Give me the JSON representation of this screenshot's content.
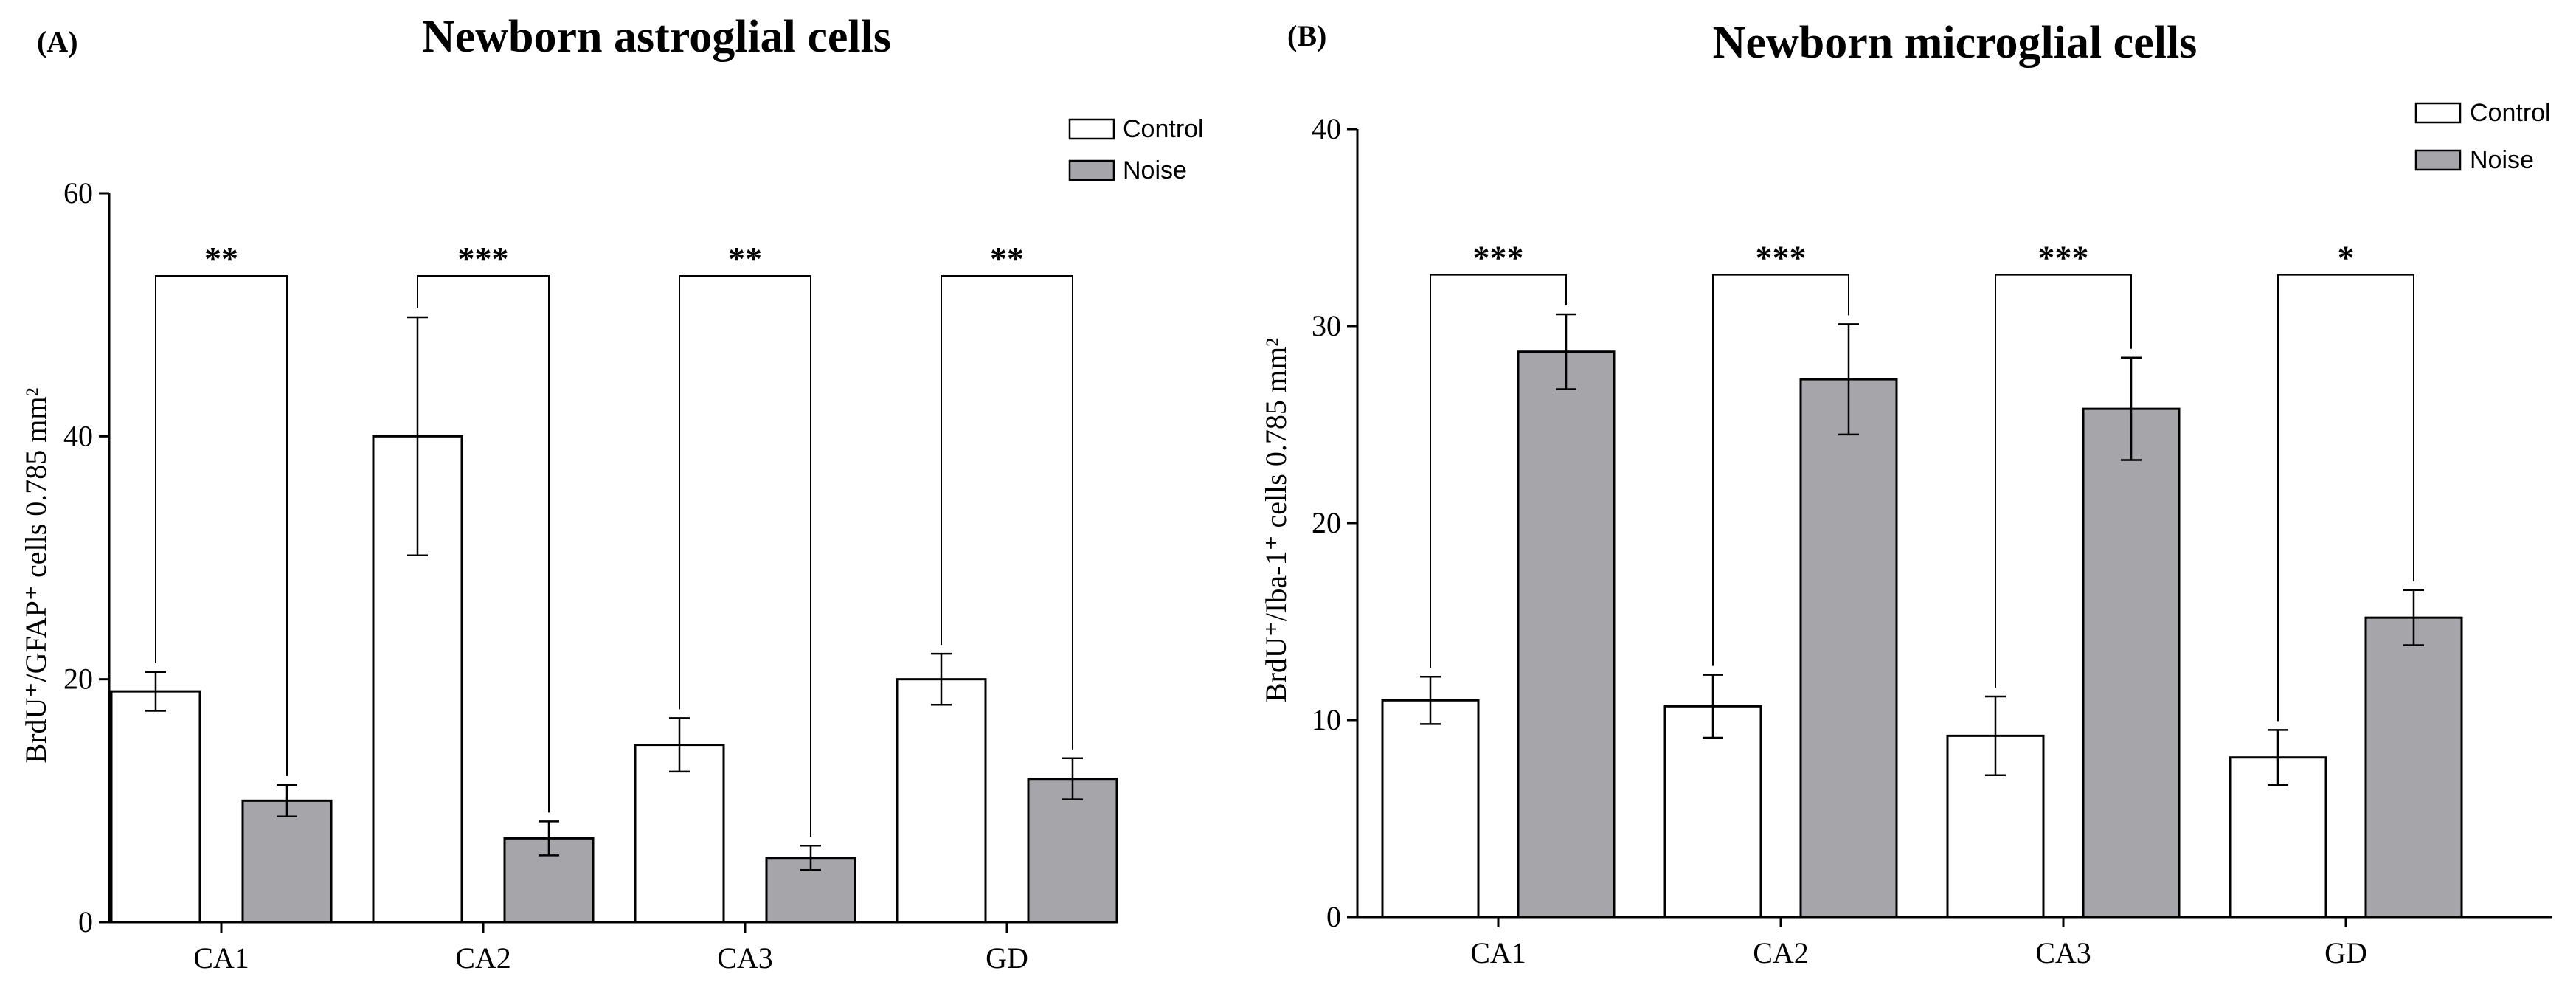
{
  "colors": {
    "control": "#ffffff",
    "noise": "#a6a5aa",
    "axis": "#000000"
  },
  "chart_data": [
    {
      "panel": "(A)",
      "type": "bar",
      "title": "Newborn astroglial cells",
      "ylabel": "BrdU⁺/GFAP⁺ cells 0.785 mm²",
      "xlabel": "",
      "categories": [
        "CA1",
        "CA2",
        "CA3",
        "GD"
      ],
      "ylim": [
        0,
        60
      ],
      "yticks": [
        0,
        20,
        40,
        60
      ],
      "legend_position": "top-right",
      "series": [
        {
          "name": "Control",
          "values": [
            19.0,
            40.0,
            14.6,
            20.0
          ],
          "errors": [
            1.6,
            9.8,
            2.2,
            2.1
          ]
        },
        {
          "name": "Noise",
          "values": [
            10.0,
            6.9,
            5.3,
            11.8
          ],
          "errors": [
            1.3,
            1.4,
            1.0,
            1.7
          ]
        }
      ],
      "significance": [
        "**",
        "***",
        "**",
        "**"
      ],
      "bracket_level": [
        53.2,
        53.2,
        53.2,
        53.2
      ]
    },
    {
      "panel": "(B)",
      "type": "bar",
      "title": "Newborn microglial cells",
      "ylabel": "BrdU⁺/Iba-1⁺ cells 0.785 mm²",
      "xlabel": "",
      "categories": [
        "CA1",
        "CA2",
        "CA3",
        "GD"
      ],
      "ylim": [
        0,
        40
      ],
      "yticks": [
        0,
        10,
        20,
        30,
        40
      ],
      "legend_position": "top-right",
      "series": [
        {
          "name": "Control",
          "values": [
            11.0,
            10.7,
            9.2,
            8.1
          ],
          "errors": [
            1.2,
            1.6,
            2.0,
            1.4
          ]
        },
        {
          "name": "Noise",
          "values": [
            28.7,
            27.3,
            25.8,
            15.2
          ],
          "errors": [
            1.9,
            2.8,
            2.6,
            1.4
          ]
        }
      ],
      "significance": [
        "***",
        "***",
        "***",
        "*"
      ],
      "bracket_level": [
        32.6,
        32.6,
        32.6,
        32.6
      ]
    }
  ]
}
